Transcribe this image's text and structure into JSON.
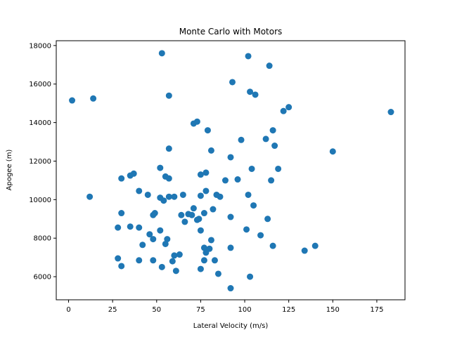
{
  "chart_data": {
    "type": "scatter",
    "title": "Monte Carlo with Motors",
    "xlabel": "Lateral Velocity (m/s)",
    "ylabel": "Apogee (m)",
    "xlim": [
      -7,
      191
    ],
    "ylim": [
      4800,
      18250
    ],
    "xticks": [
      0,
      25,
      50,
      75,
      100,
      125,
      150,
      175
    ],
    "yticks": [
      6000,
      8000,
      10000,
      12000,
      14000,
      16000,
      18000
    ],
    "grid": false,
    "marker_color": "#1f77b4",
    "series": [
      {
        "points": [
          [
            2,
            15150
          ],
          [
            14,
            15250
          ],
          [
            12,
            10150
          ],
          [
            28,
            8550
          ],
          [
            28,
            6950
          ],
          [
            30,
            6550
          ],
          [
            30,
            11100
          ],
          [
            30,
            9300
          ],
          [
            35,
            8600
          ],
          [
            35,
            11250
          ],
          [
            37,
            11350
          ],
          [
            40,
            10450
          ],
          [
            40,
            8550
          ],
          [
            40,
            6850
          ],
          [
            42,
            7650
          ],
          [
            45,
            10250
          ],
          [
            46,
            8200
          ],
          [
            48,
            6850
          ],
          [
            48,
            7950
          ],
          [
            48,
            9200
          ],
          [
            49,
            9300
          ],
          [
            52,
            10100
          ],
          [
            52,
            11650
          ],
          [
            52,
            8400
          ],
          [
            53,
            6500
          ],
          [
            53,
            17600
          ],
          [
            54,
            9950
          ],
          [
            55,
            11200
          ],
          [
            55,
            7700
          ],
          [
            56,
            7950
          ],
          [
            57,
            11100
          ],
          [
            57,
            10150
          ],
          [
            57,
            12650
          ],
          [
            57,
            15400
          ],
          [
            59,
            6800
          ],
          [
            60,
            7100
          ],
          [
            60,
            10150
          ],
          [
            61,
            6300
          ],
          [
            63,
            7150
          ],
          [
            64,
            9200
          ],
          [
            65,
            10250
          ],
          [
            66,
            8850
          ],
          [
            68,
            9250
          ],
          [
            70,
            9200
          ],
          [
            71,
            9550
          ],
          [
            71,
            13950
          ],
          [
            73,
            8950
          ],
          [
            73,
            14050
          ],
          [
            74,
            9000
          ],
          [
            75,
            10200
          ],
          [
            75,
            8400
          ],
          [
            75,
            6400
          ],
          [
            75,
            11300
          ],
          [
            77,
            9300
          ],
          [
            77,
            7500
          ],
          [
            77,
            6850
          ],
          [
            78,
            7250
          ],
          [
            78,
            11400
          ],
          [
            78,
            10450
          ],
          [
            79,
            13600
          ],
          [
            80,
            7450
          ],
          [
            81,
            7900
          ],
          [
            81,
            12550
          ],
          [
            82,
            9500
          ],
          [
            83,
            6850
          ],
          [
            84,
            10250
          ],
          [
            85,
            6150
          ],
          [
            86,
            10150
          ],
          [
            89,
            11000
          ],
          [
            92,
            5400
          ],
          [
            92,
            7500
          ],
          [
            92,
            12200
          ],
          [
            92,
            9100
          ],
          [
            93,
            16100
          ],
          [
            96,
            11050
          ],
          [
            98,
            13100
          ],
          [
            101,
            8450
          ],
          [
            102,
            10250
          ],
          [
            102,
            17450
          ],
          [
            103,
            6000
          ],
          [
            103,
            15600
          ],
          [
            104,
            11600
          ],
          [
            105,
            9700
          ],
          [
            106,
            15450
          ],
          [
            109,
            8150
          ],
          [
            112,
            13150
          ],
          [
            113,
            9000
          ],
          [
            114,
            16950
          ],
          [
            115,
            11000
          ],
          [
            116,
            13600
          ],
          [
            117,
            12800
          ],
          [
            116,
            7600
          ],
          [
            119,
            11600
          ],
          [
            122,
            14600
          ],
          [
            125,
            14800
          ],
          [
            134,
            7350
          ],
          [
            140,
            7600
          ],
          [
            150,
            12500
          ],
          [
            183,
            14550
          ]
        ]
      }
    ]
  }
}
